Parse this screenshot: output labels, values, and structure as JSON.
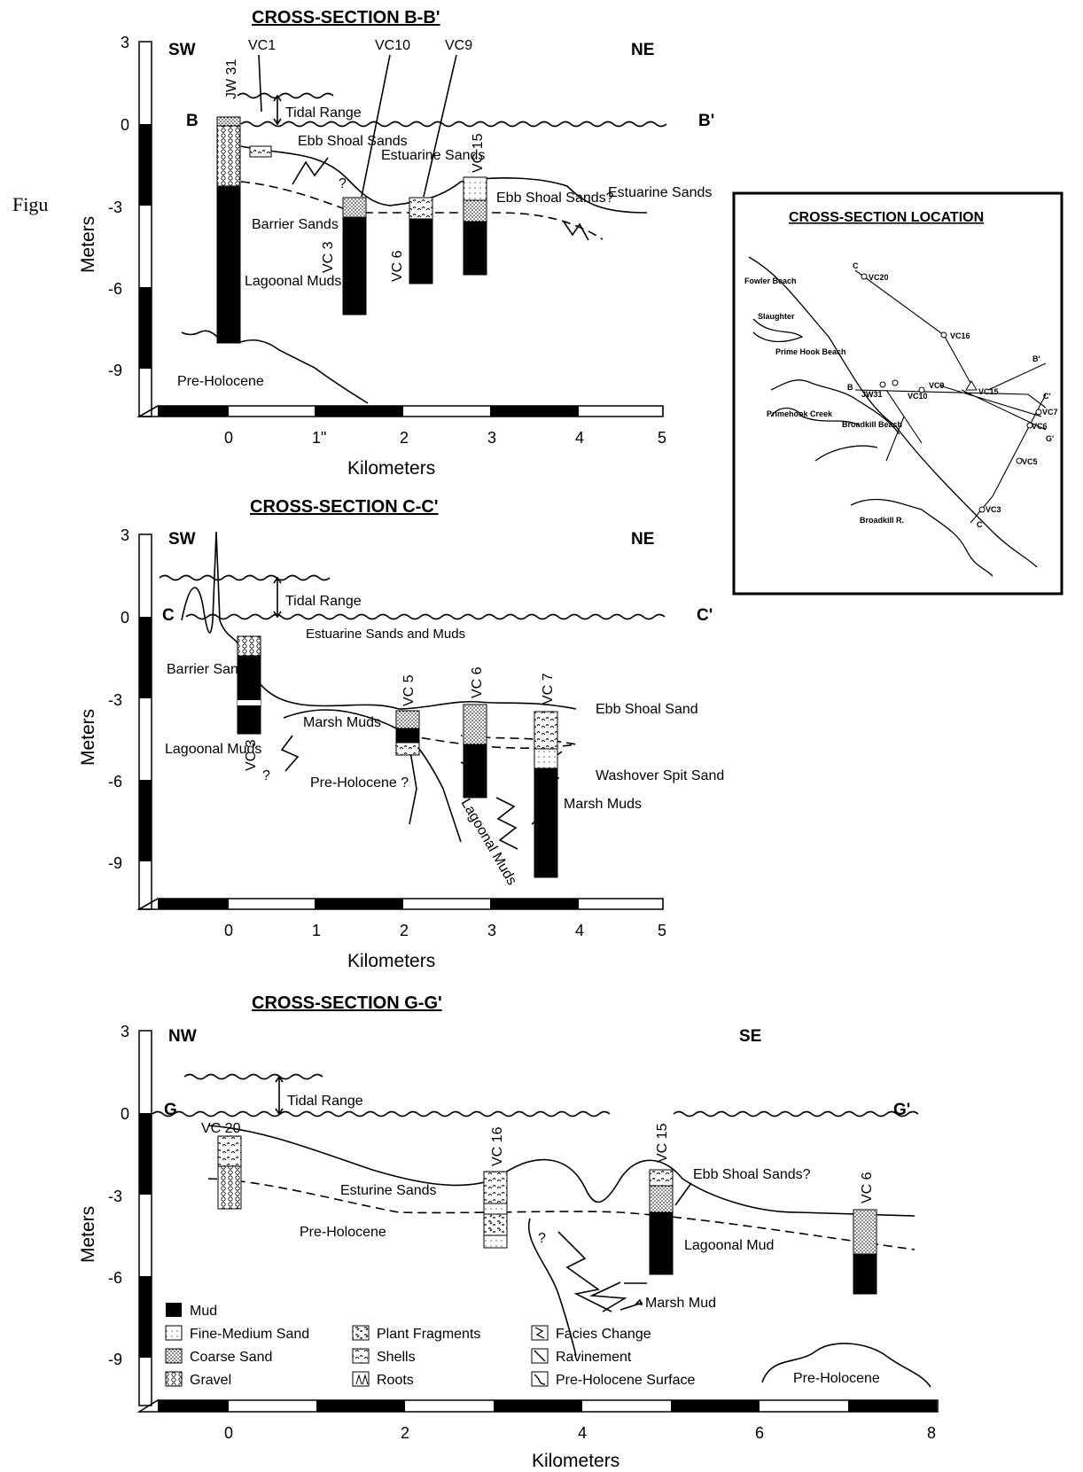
{
  "figure_fragment": "Figu",
  "units": {
    "y_label": "Meters",
    "x_label": "Kilometers"
  },
  "sections": {
    "bb": {
      "title": "CROSS-SECTION B-B'",
      "left_dir": "SW",
      "right_dir": "NE",
      "start_label": "B",
      "end_label": "B'",
      "y_ticks": [
        "3",
        "0",
        "-3",
        "-6",
        "-9"
      ],
      "x_ticks": [
        "0",
        "1\"",
        "2",
        "3",
        "4",
        "5"
      ],
      "tidal_range": "Tidal Range",
      "cores": [
        "JW 31",
        "VC1",
        "VC10",
        "VC9",
        "VC 15",
        "VC 3",
        "VC 6"
      ],
      "labels": {
        "ebb_shoal": "Ebb Shoal Sands",
        "estuarine": "Estuarine Sands",
        "ebb_shoal_q": "Ebb Shoal Sands?",
        "estuarine_right": "Estuarine Sands",
        "barrier": "Barrier Sands",
        "lagoonal": "Lagoonal Muds",
        "preholocene": "Pre-Holocene",
        "question": "?"
      }
    },
    "cc": {
      "title": "CROSS-SECTION C-C'",
      "left_dir": "SW",
      "right_dir": "NE",
      "start_label": "C",
      "end_label": "C'",
      "y_ticks": [
        "3",
        "0",
        "-3",
        "-6",
        "-9"
      ],
      "x_ticks": [
        "0",
        "1",
        "2",
        "3",
        "4",
        "5"
      ],
      "tidal_range": "Tidal Range",
      "cores": [
        "VC 3",
        "VC 5",
        "VC 6",
        "VC 7"
      ],
      "labels": {
        "estuarine": "Estuarine Sands and Muds",
        "barrier": "Barrier Sands",
        "lagoonal": "Lagoonal Muds",
        "marsh": "Marsh Muds",
        "preholocene": "Pre-Holocene ?",
        "lagoonal_rot": "Lagoonal Muds",
        "ebb_shoal": "Ebb Shoal Sand",
        "washover": "Washover Spit Sand",
        "marsh_right": "Marsh Muds",
        "question": "?"
      }
    },
    "gg": {
      "title": "CROSS-SECTION G-G'",
      "left_dir": "NW",
      "right_dir": "SE",
      "start_label": "G",
      "end_label": "G'",
      "y_ticks": [
        "3",
        "0",
        "-3",
        "-6",
        "-9"
      ],
      "x_ticks": [
        "0",
        "2",
        "4",
        "6",
        "8"
      ],
      "tidal_range": "Tidal Range",
      "cores": [
        "VC 20",
        "VC 16",
        "VC 15",
        "VC 6"
      ],
      "labels": {
        "esturine": "Esturine Sands",
        "preholocene": "Pre-Holocene",
        "ebb_shoal": "Ebb Shoal Sands?",
        "lagoonal": "Lagoonal Mud",
        "marsh": "Marsh Mud",
        "preholocene_right": "Pre-Holocene",
        "question": "?"
      }
    }
  },
  "legend": {
    "mud": "Mud",
    "fine_sand": "Fine-Medium Sand",
    "coarse_sand": "Coarse Sand",
    "gravel": "Gravel",
    "plant": "Plant Fragments",
    "shells": "Shells",
    "roots": "Roots",
    "facies": "Facies Change",
    "ravinement": "Ravinement",
    "preholocene_surface": "Pre-Holocene Surface"
  },
  "location_map": {
    "title": "CROSS-SECTION LOCATION",
    "labels": [
      "Fowler Beach",
      "Slaughter",
      "Prime Hook Beach",
      "Primehook Creek",
      "Broadkill Beach",
      "Broadkill R.",
      "C",
      "VC20",
      "VC16",
      "B'",
      "B",
      "JW31",
      "VC9",
      "VC10",
      "VC15",
      "C'",
      "VC7",
      "VC6",
      "G'",
      "VC5",
      "VC3",
      "C"
    ]
  }
}
